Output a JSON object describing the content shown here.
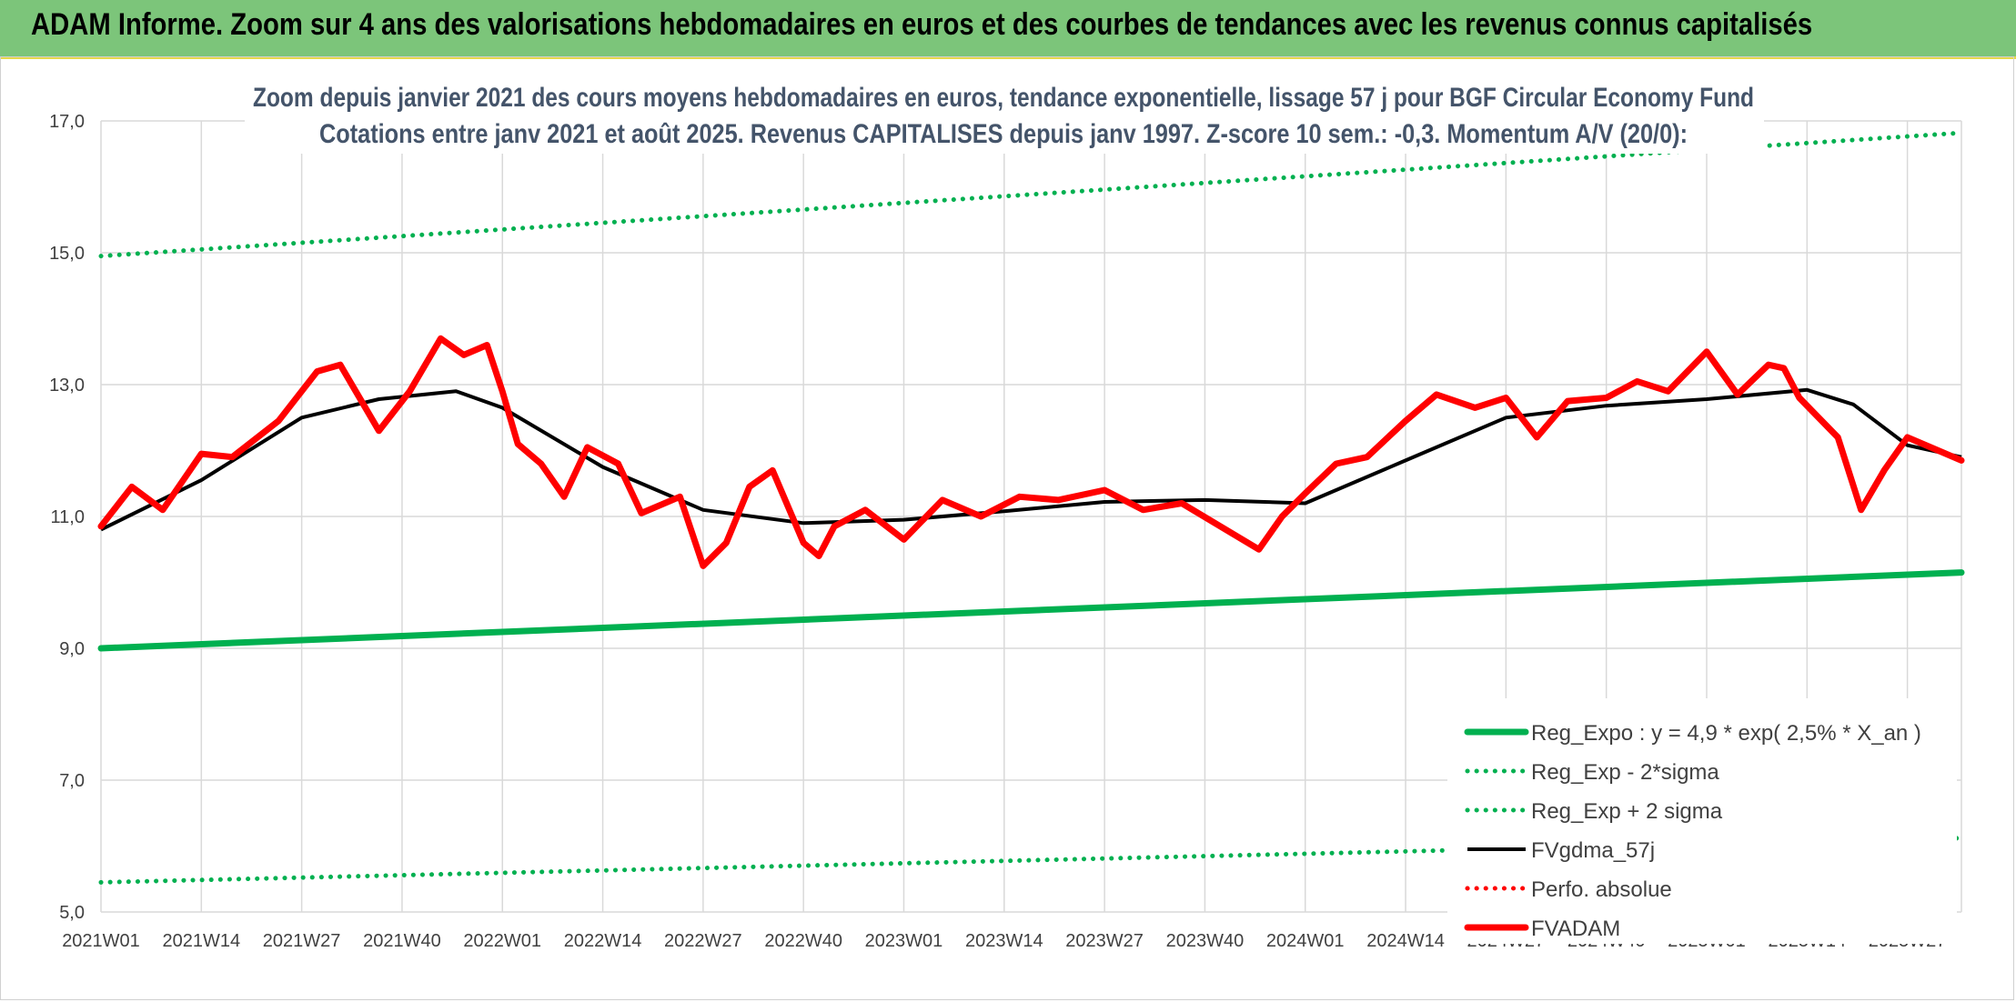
{
  "header": {
    "title": "ADAM Informe. Zoom sur 4 ans des valorisations hebdomadaires en euros et des courbes de tendances avec les revenus connus capitalisés"
  },
  "colors": {
    "banner": "#7cc57a",
    "regression": "#00b050",
    "price": "#ff0000",
    "average": "#000000",
    "grid": "#d9d9d9"
  },
  "chart_data": {
    "type": "line",
    "title": "Zoom depuis janvier 2021 des cours moyens hebdomadaires en euros, tendance exponentielle, lissage 57 j pour BGF Circular Economy Fund",
    "subtitle": "Cotations entre janv 2021 et août 2025. Revenus CAPITALISES depuis janv 1997. Z-score 10 sem.: -0,3. Momentum A/V (20/0):",
    "xlabel": "",
    "ylabel": "",
    "ylim": [
      5,
      17
    ],
    "yticks": [
      "5,0",
      "7,0",
      "9,0",
      "11,0",
      "13,0",
      "15,0",
      "17,0"
    ],
    "x_tick_labels": [
      "2021W01",
      "2021W14",
      "2021W27",
      "2021W40",
      "2022W01",
      "2022W14",
      "2022W27",
      "2022W40",
      "2023W01",
      "2023W14",
      "2023W27",
      "2023W40",
      "2024W01",
      "2024W14",
      "2024W27",
      "2024W40",
      "2025W01",
      "2025W14",
      "2025W27"
    ],
    "grid": true,
    "legend_position": "bottom-right",
    "series": [
      {
        "name": "Reg_Expo : y = 4,9 * exp( 2,5% *  X_an )",
        "style": "solid-thick",
        "color": "#00b050",
        "x": [
          0,
          241
        ],
        "y": [
          9.0,
          10.15
        ]
      },
      {
        "name": "Reg_Exp - 2*sigma",
        "style": "dotted",
        "color": "#00b050",
        "x": [
          0,
          241
        ],
        "y": [
          5.45,
          6.12
        ]
      },
      {
        "name": "Reg_Exp + 2 sigma",
        "style": "dotted",
        "color": "#00b050",
        "x": [
          0,
          241
        ],
        "y": [
          14.95,
          16.82
        ]
      },
      {
        "name": "FVgdma_57j",
        "style": "solid",
        "color": "#000000",
        "x": [
          0,
          13,
          26,
          36,
          46,
          52,
          65,
          78,
          91,
          104,
          117,
          130,
          143,
          156,
          169,
          182,
          195,
          208,
          221,
          227,
          234,
          241
        ],
        "y": [
          10.8,
          11.55,
          12.5,
          12.78,
          12.9,
          12.65,
          11.75,
          11.1,
          10.9,
          10.95,
          11.08,
          11.22,
          11.25,
          11.2,
          11.85,
          12.5,
          12.68,
          12.78,
          12.92,
          12.7,
          12.08,
          11.9
        ]
      },
      {
        "name": "Perfo. absolue",
        "style": "dotted",
        "color": "#ff0000",
        "x": [],
        "y": []
      },
      {
        "name": "FVADAM",
        "style": "solid-thick",
        "color": "#ff0000",
        "x": [
          0,
          4,
          8,
          13,
          17,
          23,
          28,
          31,
          36,
          40,
          44,
          47,
          50,
          52,
          54,
          57,
          60,
          63,
          67,
          70,
          75,
          78,
          81,
          84,
          87,
          91,
          93,
          95,
          99,
          104,
          109,
          114,
          119,
          124,
          130,
          135,
          140,
          145,
          150,
          153,
          156,
          160,
          164,
          169,
          173,
          178,
          182,
          186,
          190,
          195,
          199,
          203,
          208,
          212,
          216,
          218,
          220,
          225,
          228,
          231,
          234,
          237,
          241
        ],
        "y": [
          10.85,
          11.45,
          11.1,
          11.95,
          11.9,
          12.45,
          13.2,
          13.3,
          12.3,
          12.9,
          13.7,
          13.45,
          13.6,
          12.9,
          12.1,
          11.8,
          11.3,
          12.05,
          11.8,
          11.05,
          11.3,
          10.25,
          10.6,
          11.45,
          11.7,
          10.6,
          10.4,
          10.85,
          11.1,
          10.65,
          11.25,
          11.0,
          11.3,
          11.25,
          11.4,
          11.1,
          11.2,
          10.85,
          10.5,
          11.0,
          11.35,
          11.8,
          11.9,
          12.45,
          12.85,
          12.65,
          12.8,
          12.2,
          12.75,
          12.8,
          13.05,
          12.9,
          13.5,
          12.85,
          13.3,
          13.25,
          12.8,
          12.2,
          11.1,
          11.7,
          12.2,
          12.05,
          11.85
        ]
      }
    ]
  }
}
